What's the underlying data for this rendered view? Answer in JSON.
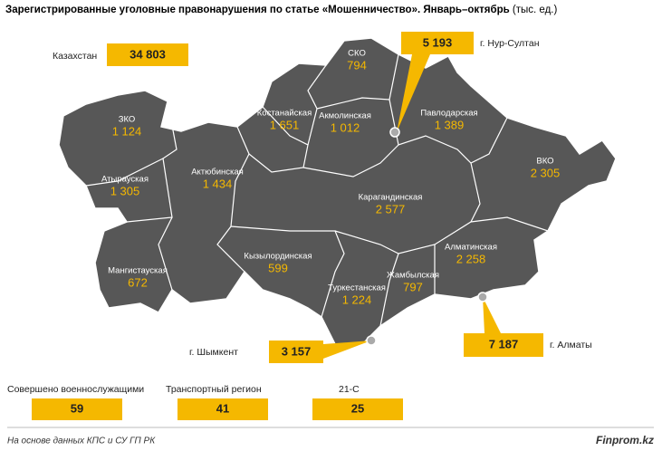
{
  "title": "Зарегистрированные уголовные правонарушения по статье «Мошенничество». Январь–октябрь",
  "unit": "(тыс. ед.)",
  "total": {
    "label": "Казахстан",
    "value": "34 803"
  },
  "cities": [
    {
      "label": "г. Нур-Султан",
      "value": "5 193"
    },
    {
      "label": "г. Шымкент",
      "value": "3 157"
    },
    {
      "label": "г. Алматы",
      "value": "7 187"
    }
  ],
  "regions": [
    {
      "name": "ЗКО",
      "value": "1 124"
    },
    {
      "name": "Атырауская",
      "value": "1 305"
    },
    {
      "name": "Актюбинская",
      "value": "1 434"
    },
    {
      "name": "Мангистауская",
      "value": "672"
    },
    {
      "name": "Костанайская",
      "value": "1 651"
    },
    {
      "name": "СКО",
      "value": "794"
    },
    {
      "name": "Акмолинская",
      "value": "1 012"
    },
    {
      "name": "Павлодарская",
      "value": "1 389"
    },
    {
      "name": "ВКО",
      "value": "2 305"
    },
    {
      "name": "Карагандинская",
      "value": "2 577"
    },
    {
      "name": "Кызылординская",
      "value": "599"
    },
    {
      "name": "Туркестанская",
      "value": "1 224"
    },
    {
      "name": "Жамбылская",
      "value": "797"
    },
    {
      "name": "Алматинская",
      "value": "2 258"
    }
  ],
  "extras": [
    {
      "label": "Совершено военнослужащими",
      "value": "59"
    },
    {
      "label": "Транспортный регион",
      "value": "41"
    },
    {
      "label": "21-С",
      "value": "25"
    }
  ],
  "footer": {
    "source": "На основе данных КПС и СУ ГП РК",
    "brand": "Finprom.kz"
  }
}
